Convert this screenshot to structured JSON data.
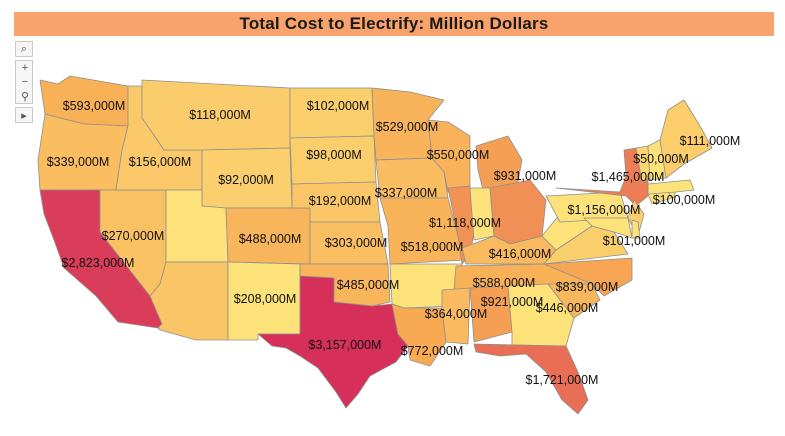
{
  "title": "Total Cost to Electrify:  Million Dollars",
  "map_data": {
    "color_scale": {
      "low": "#fde27a",
      "mid": "#f8a953",
      "high": "#d6305a"
    },
    "states": [
      {
        "state": "WA",
        "label": "$593,000M",
        "value": 593000
      },
      {
        "state": "OR",
        "label": "$339,000M",
        "value": 339000
      },
      {
        "state": "CA",
        "label": "$2,823,000M",
        "value": 2823000
      },
      {
        "state": "NV",
        "label": "$270,000M",
        "value": 270000
      },
      {
        "state": "ID",
        "label": "$156,000M",
        "value": 156000
      },
      {
        "state": "MT",
        "label": "$118,000M",
        "value": 118000
      },
      {
        "state": "WY",
        "label": "$92,000M",
        "value": 92000
      },
      {
        "state": "CO",
        "label": "$488,000M",
        "value": 488000
      },
      {
        "state": "AZ",
        "label": "$208,000M",
        "value": 208000
      },
      {
        "state": "ND",
        "label": "$102,000M",
        "value": 102000
      },
      {
        "state": "SD",
        "label": "$98,000M",
        "value": 98000
      },
      {
        "state": "NE",
        "label": "$192,000M",
        "value": 192000
      },
      {
        "state": "KS",
        "label": "$303,000M",
        "value": 303000
      },
      {
        "state": "OK",
        "label": "$485,000M",
        "value": 485000
      },
      {
        "state": "TX",
        "label": "$3,157,000M",
        "value": 3157000
      },
      {
        "state": "MN",
        "label": "$529,000M",
        "value": 529000
      },
      {
        "state": "IA",
        "label": "$337,000M",
        "value": 337000
      },
      {
        "state": "MO",
        "label": "$518,000M",
        "value": 518000
      },
      {
        "state": "LA",
        "label": "$772,000M",
        "value": 772000
      },
      {
        "state": "WI",
        "label": "$550,000M",
        "value": 550000
      },
      {
        "state": "IL",
        "label": "$1,118,000M",
        "value": 1118000
      },
      {
        "state": "MI",
        "label": "$931,000M",
        "value": 931000
      },
      {
        "state": "KY",
        "label": "$416,000M",
        "value": 416000
      },
      {
        "state": "TN",
        "label": "$588,000M",
        "value": 588000
      },
      {
        "state": "MS",
        "label": "$364,000M",
        "value": 364000
      },
      {
        "state": "AL",
        "label": "$921,000M",
        "value": 921000
      },
      {
        "state": "OH",
        "label": "$1,156,000M",
        "value": 1156000
      },
      {
        "state": "NY",
        "label": "$1,465,000M",
        "value": 1465000
      },
      {
        "state": "VT",
        "label": "$50,000M",
        "value": 50000
      },
      {
        "state": "ME",
        "label": "$111,000M",
        "value": 111000
      },
      {
        "state": "NJ",
        "label": "$100,000M",
        "value": 100000
      },
      {
        "state": "VA",
        "label": "$101,000M",
        "value": 101000
      },
      {
        "state": "NC",
        "label": "$839,000M",
        "value": 839000
      },
      {
        "state": "SC",
        "label": "$446,000M",
        "value": 446000
      },
      {
        "state": "FL",
        "label": "$1,721,000M",
        "value": 1721000
      }
    ]
  },
  "controls": [
    {
      "name": "search-icon",
      "glyph": "⌕"
    },
    {
      "name": "zoom-in-icon",
      "glyph": "+"
    },
    {
      "name": "zoom-out-icon",
      "glyph": "−"
    },
    {
      "name": "pin-icon",
      "glyph": "⚲"
    },
    {
      "name": "play-icon",
      "glyph": "▸"
    }
  ]
}
